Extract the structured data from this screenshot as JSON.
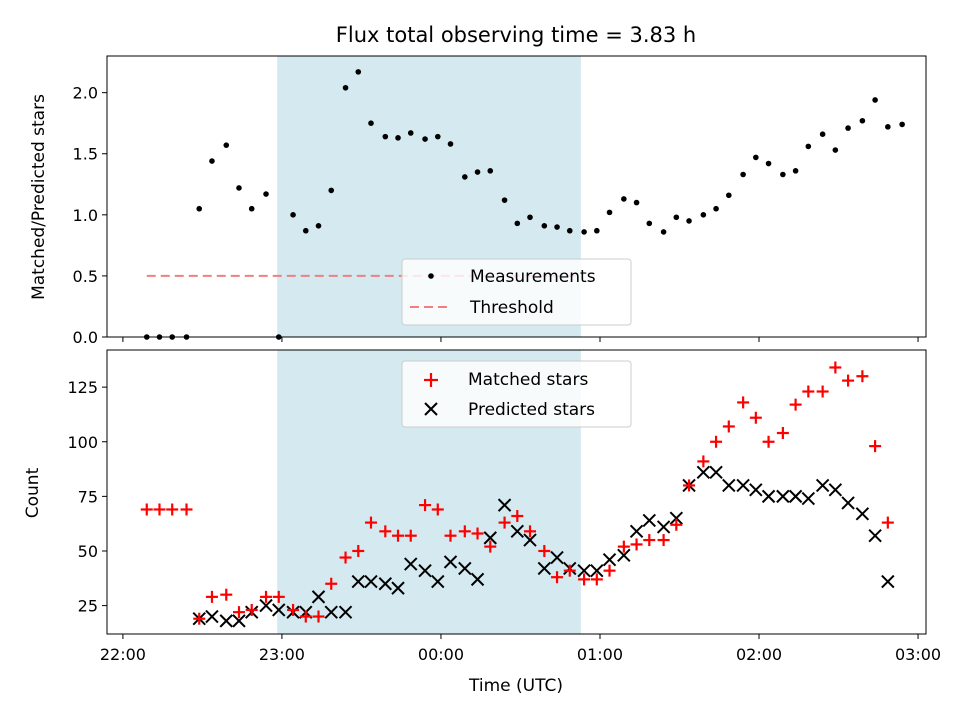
{
  "chart_data": [
    {
      "type": "scatter",
      "title": "Flux total observing time = 3.83 h",
      "ylabel": "Matched/Predicted stars",
      "ylim": [
        0,
        2.3
      ],
      "yticks": [
        "0.0",
        "0.5",
        "1.0",
        "1.5",
        "2.0"
      ],
      "shaded_region": {
        "x_start": 22.97,
        "x_end": 24.88,
        "color": "#d4eaf0"
      },
      "threshold": {
        "name": "Threshold",
        "value": 0.5,
        "x_range": [
          22.15,
          24.88
        ],
        "color": "#f08080",
        "style": "dashed"
      },
      "legend_position": "lower-center",
      "series": [
        {
          "name": "Measurements",
          "marker": "dot",
          "color": "#000000",
          "x": [
            22.15,
            22.23,
            22.31,
            22.4,
            22.48,
            22.56,
            22.65,
            22.73,
            22.81,
            22.9,
            22.98,
            23.07,
            23.15,
            23.23,
            23.31,
            23.4,
            23.48,
            23.56,
            23.65,
            23.73,
            23.81,
            23.9,
            23.98,
            24.06,
            24.15,
            24.23,
            24.31,
            24.4,
            24.48,
            24.56,
            24.65,
            24.73,
            24.81,
            24.9,
            24.98,
            25.06,
            25.15,
            25.23,
            25.31,
            25.4,
            25.48,
            25.56,
            25.65,
            25.73,
            25.81,
            25.9,
            25.98,
            26.06,
            26.15,
            26.23,
            26.31,
            26.4,
            26.48,
            26.56,
            26.65,
            26.73,
            26.81,
            26.9
          ],
          "y": [
            0.0,
            0.0,
            0.0,
            0.0,
            1.05,
            1.44,
            1.57,
            1.22,
            1.05,
            1.17,
            0.0,
            1.0,
            0.87,
            0.91,
            1.2,
            2.04,
            2.17,
            1.75,
            1.64,
            1.63,
            1.67,
            1.62,
            1.64,
            1.58,
            1.31,
            1.35,
            1.36,
            1.12,
            0.93,
            0.98,
            0.91,
            0.9,
            0.87,
            0.86,
            0.87,
            1.02,
            1.13,
            1.1,
            0.93,
            0.86,
            0.98,
            0.95,
            1.0,
            1.05,
            1.16,
            1.33,
            1.47,
            1.42,
            1.33,
            1.36,
            1.56,
            1.66,
            1.53,
            1.71,
            1.77,
            1.94,
            1.72,
            1.74
          ]
        }
      ]
    },
    {
      "type": "scatter",
      "xlabel": "Time (UTC)",
      "ylabel": "Count",
      "ylim": [
        12,
        142
      ],
      "xlim": [
        21.9,
        27.05
      ],
      "yticks": [
        "25",
        "50",
        "75",
        "100",
        "125"
      ],
      "xticks": [
        "22:00",
        "23:00",
        "00:00",
        "01:00",
        "02:00",
        "03:00"
      ],
      "shaded_region": {
        "x_start": 22.97,
        "x_end": 24.88,
        "color": "#d4eaf0"
      },
      "legend_position": "upper-center",
      "series": [
        {
          "name": "Matched stars",
          "marker": "plus",
          "color": "#ff0000",
          "x": [
            22.15,
            22.23,
            22.31,
            22.4,
            22.48,
            22.56,
            22.65,
            22.73,
            22.81,
            22.9,
            22.98,
            23.07,
            23.15,
            23.23,
            23.31,
            23.4,
            23.48,
            23.56,
            23.65,
            23.73,
            23.81,
            23.9,
            23.98,
            24.06,
            24.15,
            24.23,
            24.31,
            24.4,
            24.48,
            24.56,
            24.65,
            24.73,
            24.81,
            24.9,
            24.98,
            25.06,
            25.15,
            25.23,
            25.31,
            25.4,
            25.48,
            25.56,
            25.65,
            25.73,
            25.81,
            25.9,
            25.98,
            26.06,
            26.15,
            26.23,
            26.31,
            26.4,
            26.48,
            26.56,
            26.65,
            26.73,
            26.81,
            26.9
          ],
          "y": [
            69,
            69,
            69,
            69,
            19,
            29,
            30,
            22,
            23,
            29,
            29,
            23,
            20,
            20,
            35,
            47,
            50,
            63,
            59,
            57,
            57,
            71,
            69,
            57,
            59,
            58,
            52,
            63,
            66,
            59,
            50,
            38,
            41,
            37,
            37,
            41,
            52,
            53,
            55,
            55,
            62,
            80,
            91,
            100,
            107,
            118,
            111,
            100,
            104,
            117,
            123,
            123,
            134,
            128,
            130,
            98,
            63,
            null
          ]
        },
        {
          "name": "Predicted stars",
          "marker": "x",
          "color": "#000000",
          "x": [
            22.48,
            22.56,
            22.65,
            22.73,
            22.81,
            22.9,
            22.98,
            23.07,
            23.15,
            23.23,
            23.31,
            23.4,
            23.48,
            23.56,
            23.65,
            23.73,
            23.81,
            23.9,
            23.98,
            24.06,
            24.15,
            24.23,
            24.31,
            24.4,
            24.48,
            24.56,
            24.65,
            24.73,
            24.81,
            24.9,
            24.98,
            25.06,
            25.15,
            25.23,
            25.31,
            25.4,
            25.48,
            25.56,
            25.65,
            25.73,
            25.81,
            25.9,
            25.98,
            26.06,
            26.15,
            26.23,
            26.31,
            26.4,
            26.48,
            26.56,
            26.65,
            26.73,
            26.81,
            26.9
          ],
          "y": [
            19,
            20,
            18,
            18,
            22,
            25,
            23,
            22,
            22,
            29,
            22,
            22,
            36,
            36,
            35,
            33,
            44,
            41,
            36,
            45,
            42,
            37,
            56,
            71,
            59,
            55,
            42,
            47,
            42,
            41,
            41,
            46,
            48,
            59,
            64,
            61,
            65,
            80,
            86,
            86,
            80,
            80,
            78,
            75,
            75,
            75,
            74,
            80,
            78,
            72,
            67,
            57,
            36,
            null
          ]
        }
      ]
    }
  ]
}
